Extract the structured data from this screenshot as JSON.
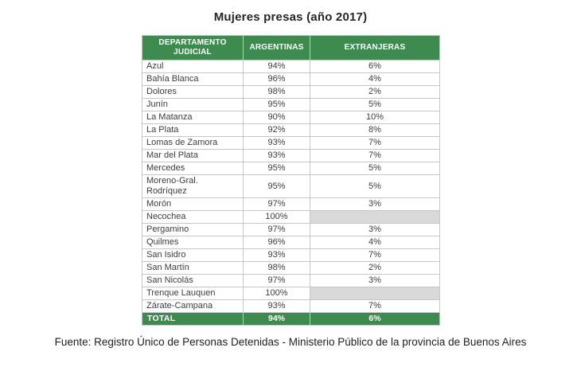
{
  "title": "Mujeres presas (año 2017)",
  "chart_data": {
    "type": "table",
    "title": "Mujeres presas (año 2017)",
    "columns": [
      "DEPARTAMENTO JUDICIAL",
      "ARGENTINAS",
      "EXTRANJERAS"
    ],
    "rows": [
      [
        "Azul",
        "94%",
        "6%"
      ],
      [
        "Bahía Blanca",
        "96%",
        "4%"
      ],
      [
        "Dolores",
        "98%",
        "2%"
      ],
      [
        "Junín",
        "95%",
        "5%"
      ],
      [
        "La Matanza",
        "90%",
        "10%"
      ],
      [
        "La Plata",
        "92%",
        "8%"
      ],
      [
        "Lomas de Zamora",
        "93%",
        "7%"
      ],
      [
        "Mar del Plata",
        "93%",
        "7%"
      ],
      [
        "Mercedes",
        "95%",
        "5%"
      ],
      [
        "Moreno-Gral. Rodríquez",
        "95%",
        "5%"
      ],
      [
        "Morón",
        "97%",
        "3%"
      ],
      [
        "Necochea",
        "100%",
        ""
      ],
      [
        "Pergamino",
        "97%",
        "3%"
      ],
      [
        "Quilmes",
        "96%",
        "4%"
      ],
      [
        "San Isidro",
        "93%",
        "7%"
      ],
      [
        "San Martín",
        "98%",
        "2%"
      ],
      [
        "San Nicolás",
        "97%",
        "3%"
      ],
      [
        "Trenque Lauquen",
        "100%",
        ""
      ],
      [
        "Zárate-Campana",
        "93%",
        "7%"
      ]
    ],
    "total_row": [
      "TOTAL",
      "94%",
      "6%"
    ]
  },
  "footer": {
    "source": "Fuente: Registro Único de Personas Detenidas - Ministerio Público de la provincia de Buenos Aires"
  },
  "colors": {
    "header_green": "#3e8b50",
    "empty_cell_gray": "#d9d9d9",
    "border_gray": "#c6c6c6",
    "text_dark": "#3d3d3d"
  }
}
